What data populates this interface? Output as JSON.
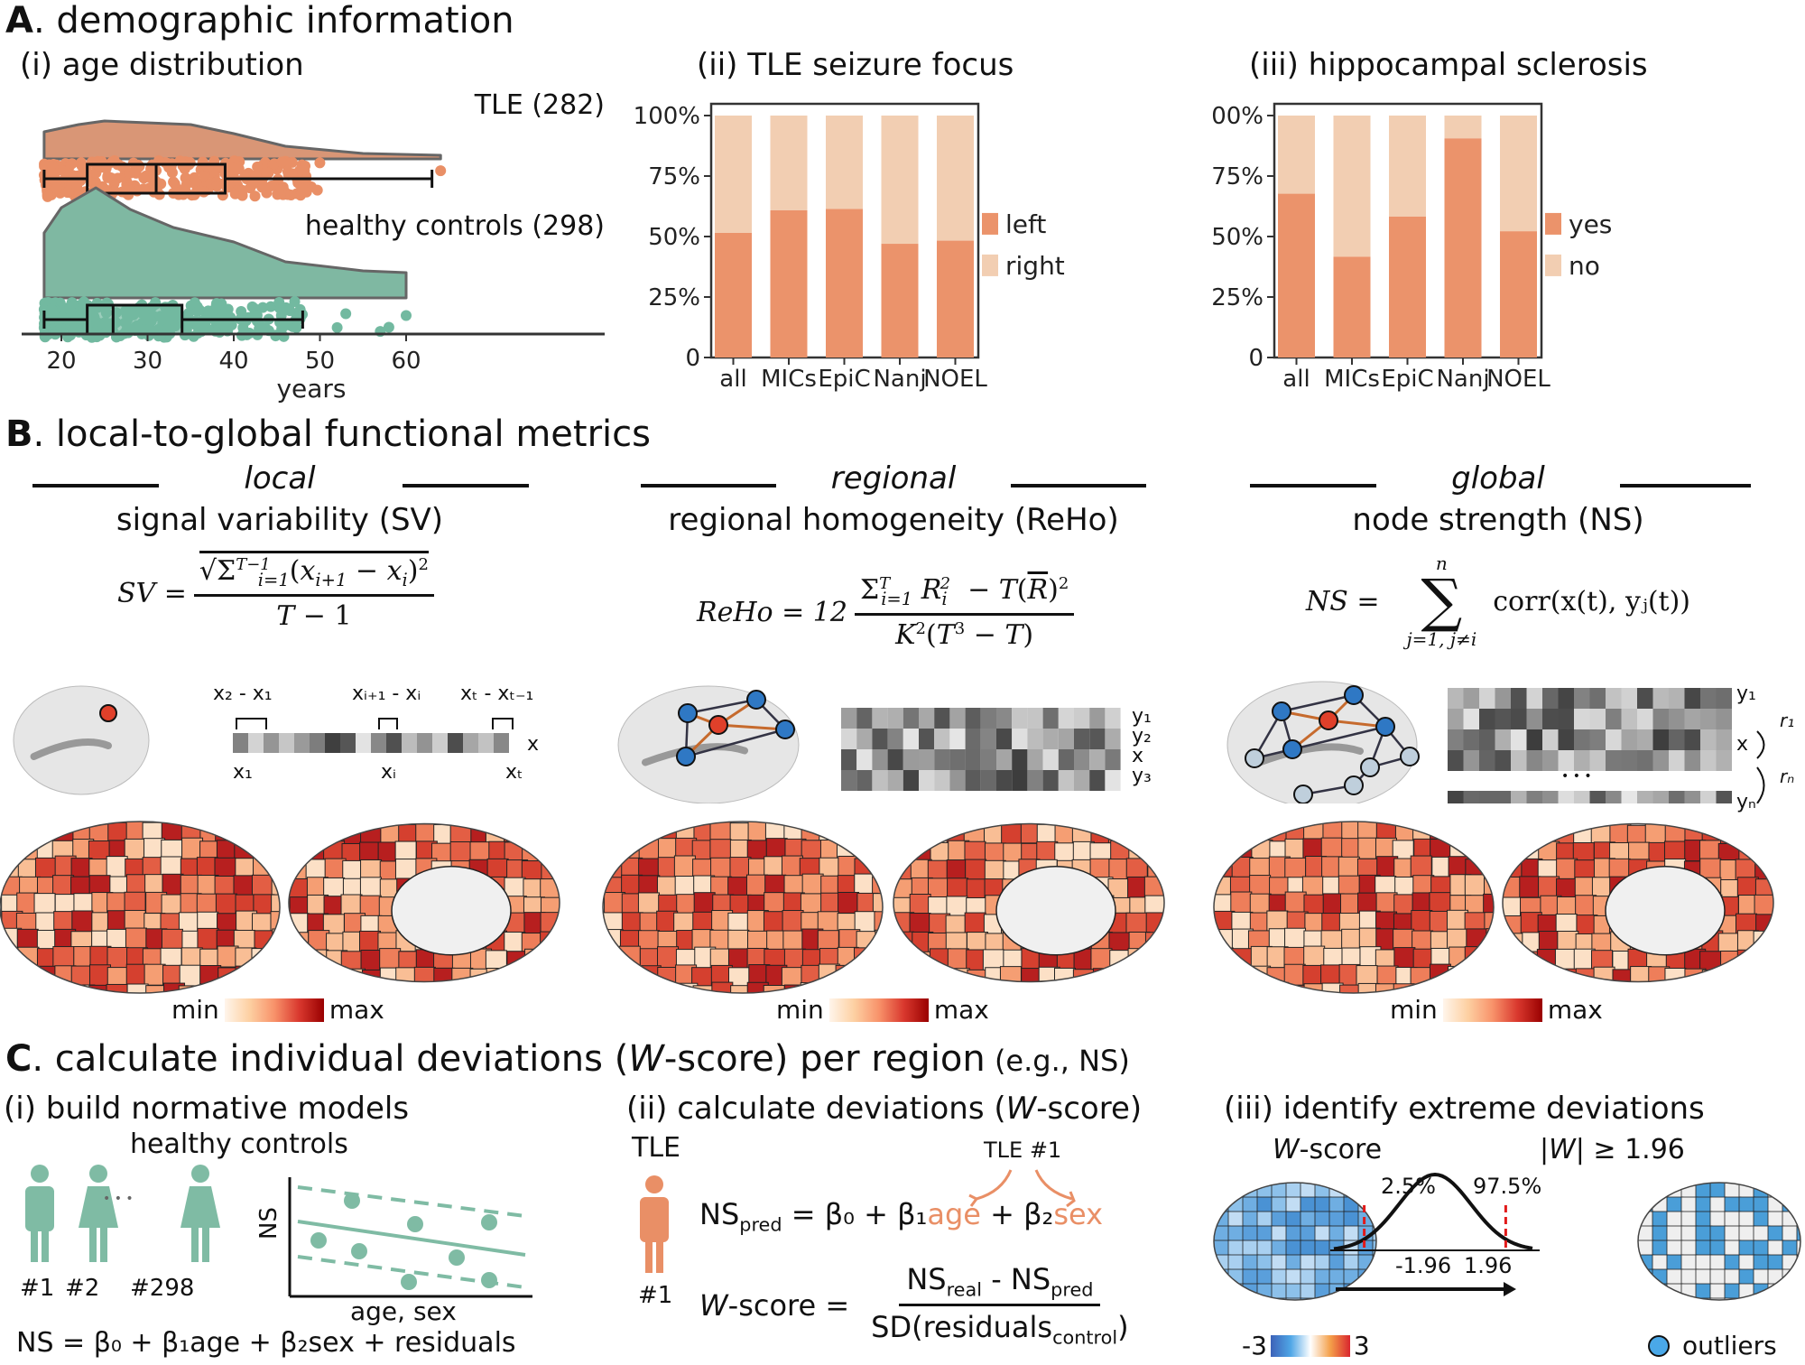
{
  "sectionA": {
    "letter": "A",
    "title": ". demographic information",
    "age": {
      "title": "(i) age distribution",
      "xlabel": "years",
      "ticks": [
        "20",
        "30",
        "40",
        "50",
        "60"
      ],
      "groups": [
        {
          "label": "TLE (282)",
          "color": "#E98F66",
          "kde": "#D99676"
        },
        {
          "label": "healthy controls (298)",
          "color": "#72B9A0",
          "kde": "#7FB8A2"
        }
      ]
    },
    "focus": {
      "title": "(ii) TLE seizure focus"
    },
    "hs": {
      "title": "(iii) hippocampal sclerosis"
    }
  },
  "chart_data": [
    {
      "type": "box",
      "title": "(i) age distribution",
      "xlabel": "years",
      "xlim": [
        15,
        65
      ],
      "xticks": [
        20,
        30,
        40,
        50,
        60
      ],
      "series": [
        {
          "name": "TLE (282)",
          "n": 282,
          "min": 18,
          "q1": 23,
          "median": 31,
          "q3": 39,
          "max": 63,
          "outliers": [
            64
          ]
        },
        {
          "name": "healthy controls (298)",
          "n": 298,
          "min": 18,
          "q1": 23,
          "median": 26,
          "q3": 34,
          "max": 48,
          "outliers": [
            52,
            53,
            57,
            58,
            60
          ]
        }
      ]
    },
    {
      "type": "bar",
      "stacked": true,
      "title": "(ii) TLE seizure focus",
      "categories": [
        "all",
        "MICs",
        "EpiC",
        "Nanj",
        "NOEL"
      ],
      "yticks": [
        "0",
        "25%",
        "50%",
        "75%",
        "100%"
      ],
      "ylim": [
        0,
        100
      ],
      "legend_position": "right",
      "series": [
        {
          "name": "left",
          "color": "#EB936B",
          "values": [
            51.5,
            60.9,
            61.4,
            47.0,
            48.3
          ]
        },
        {
          "name": "right",
          "color": "#F2CEB2",
          "values": [
            48.5,
            39.1,
            38.6,
            53.0,
            51.7
          ]
        }
      ]
    },
    {
      "type": "bar",
      "stacked": true,
      "title": "(iii) hippocampal sclerosis",
      "categories": [
        "all",
        "MICs",
        "EpiC",
        "Nanj",
        "NOEL"
      ],
      "yticks": [
        "0",
        "25%",
        "50%",
        "75%",
        "100%"
      ],
      "ylim": [
        0,
        100
      ],
      "legend_position": "right",
      "series": [
        {
          "name": "yes",
          "color": "#EB936B",
          "values": [
            67.7,
            41.7,
            58.3,
            90.6,
            52.2
          ]
        },
        {
          "name": "no",
          "color": "#F2CEB2",
          "values": [
            32.3,
            58.3,
            41.7,
            9.4,
            47.8
          ]
        }
      ]
    }
  ],
  "sectionB": {
    "letter": "B",
    "title": ". local-to-global functional metrics",
    "colorbar": {
      "min": "min",
      "max": "max"
    },
    "columns": [
      {
        "scale": "local",
        "metric": "signal variability (SV)",
        "formula_lhs": "SV =",
        "labels": {
          "d1": "x₂ - x₁",
          "di": "xᵢ₊₁ - xᵢ",
          "dT": "xₜ - xₜ₋₁",
          "x": "x",
          "x1": "x₁",
          "xi": "xᵢ",
          "xT": "xₜ"
        }
      },
      {
        "scale": "regional",
        "metric": "regional homogeneity (ReHo)",
        "formula_lhs": "ReHo = 12",
        "rows": [
          "y₁",
          "y₂",
          "x",
          "y₃"
        ]
      },
      {
        "scale": "global",
        "metric": "node strength (NS)",
        "formula_lhs": "NS =",
        "formula_rhs": "corr(x(t), yⱼ(t))",
        "sum_top": "n",
        "sum_bottom": "j=1, j≠i",
        "rows": [
          "y₁",
          "x",
          "yₙ"
        ],
        "r1": "r₁",
        "rn": "rₙ",
        "ellipsis": "• • •"
      }
    ]
  },
  "sectionC": {
    "letter": "C",
    "title_a": ". calculate individual deviations (",
    "title_w": "W",
    "title_b": "-score) per region",
    "title_eg": " (e.g., NS)",
    "panel1": {
      "title": "(i) build normative models",
      "group": "healthy controls",
      "ids": [
        "#1",
        "#2",
        "#298"
      ],
      "ellipsis": "• • •",
      "ylabel": "NS",
      "xlabel": "age, sex",
      "equation": "NS = β₀ + β₁age + β₂sex + residuals"
    },
    "panel2": {
      "title_a": "(ii) calculate deviations (",
      "title_w": "W",
      "title_b": "-score)",
      "group": "TLE",
      "id": "#1",
      "subject": "TLE #1",
      "pred_lhs": "NS",
      "pred_sub": "pred",
      "pred_eq": " = β₀ + β₁",
      "age": "age",
      "plus": " + β₂",
      "sex": "sex",
      "w_lhs_w": "W",
      "w_lhs": "-score =",
      "num_a": "NS",
      "num_a_sub": "real",
      "num_mid": " - NS",
      "num_b_sub": "pred",
      "den": "SD(residuals",
      "den_sub": "control",
      "den_close": ")"
    },
    "panel3": {
      "title": "(iii) identify extreme deviations",
      "wscore_w": "W",
      "wscore": "-score",
      "threshold_a": "|",
      "threshold_w": "W",
      "threshold_b": "| ≥ 1.96",
      "p_low": "2.5%",
      "p_high": "97.5%",
      "z_low": "-1.96",
      "z_high": "1.96",
      "cbar_min": "-3",
      "cbar_max": "3",
      "legend": "outliers"
    }
  }
}
